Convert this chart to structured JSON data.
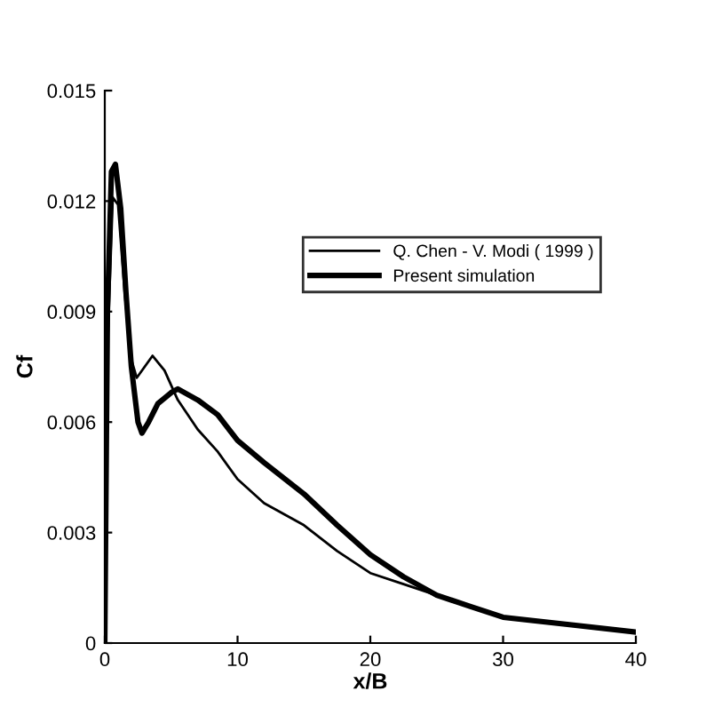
{
  "chart_data": {
    "type": "line",
    "xlabel": "x/B",
    "ylabel": "Cf",
    "xlim": [
      0,
      40
    ],
    "ylim": [
      0,
      0.015
    ],
    "xticks": [
      0,
      10,
      20,
      30,
      40
    ],
    "yticks": [
      {
        "value": 0,
        "label": "0"
      },
      {
        "value": 0.003,
        "label": "0.003"
      },
      {
        "value": 0.006,
        "label": "0.006"
      },
      {
        "value": 0.009,
        "label": "0.009"
      },
      {
        "value": 0.012,
        "label": "0.012"
      },
      {
        "value": 0.015,
        "label": "0.015"
      }
    ],
    "legend": "top right",
    "grid": false,
    "series": [
      {
        "name": "Q. Chen - V. Modi ( 1999 )",
        "color": "#000000",
        "x": [
          0,
          0.2,
          0.6,
          1.0,
          1.5,
          2.0,
          2.4,
          3.0,
          3.6,
          4.5,
          5.5,
          7,
          8.5,
          10,
          12,
          15,
          17.5,
          20,
          22.5,
          25,
          27.5,
          30,
          35,
          40
        ],
        "values": [
          0,
          0.008,
          0.0121,
          0.0119,
          0.0095,
          0.0077,
          0.0072,
          0.0075,
          0.0078,
          0.0074,
          0.0066,
          0.0058,
          0.0052,
          0.00445,
          0.0038,
          0.0032,
          0.0025,
          0.0019,
          0.0016,
          0.0013,
          0.001,
          0.0007,
          0.0005,
          0.0003
        ]
      },
      {
        "name": "Present simulation",
        "color": "#000000",
        "x": [
          0,
          0.2,
          0.5,
          0.8,
          1.2,
          1.6,
          2.0,
          2.5,
          2.8,
          3.3,
          4.0,
          5.0,
          5.5,
          7,
          8.5,
          10,
          12,
          15,
          17.5,
          20,
          22.5,
          25,
          27.5,
          30,
          35,
          40
        ],
        "values": [
          0,
          0.009,
          0.0128,
          0.013,
          0.0118,
          0.0095,
          0.0075,
          0.006,
          0.0057,
          0.006,
          0.0065,
          0.0068,
          0.0069,
          0.0066,
          0.0062,
          0.0055,
          0.0049,
          0.00405,
          0.0032,
          0.0024,
          0.0018,
          0.0013,
          0.001,
          0.0007,
          0.0005,
          0.0003
        ]
      }
    ]
  }
}
